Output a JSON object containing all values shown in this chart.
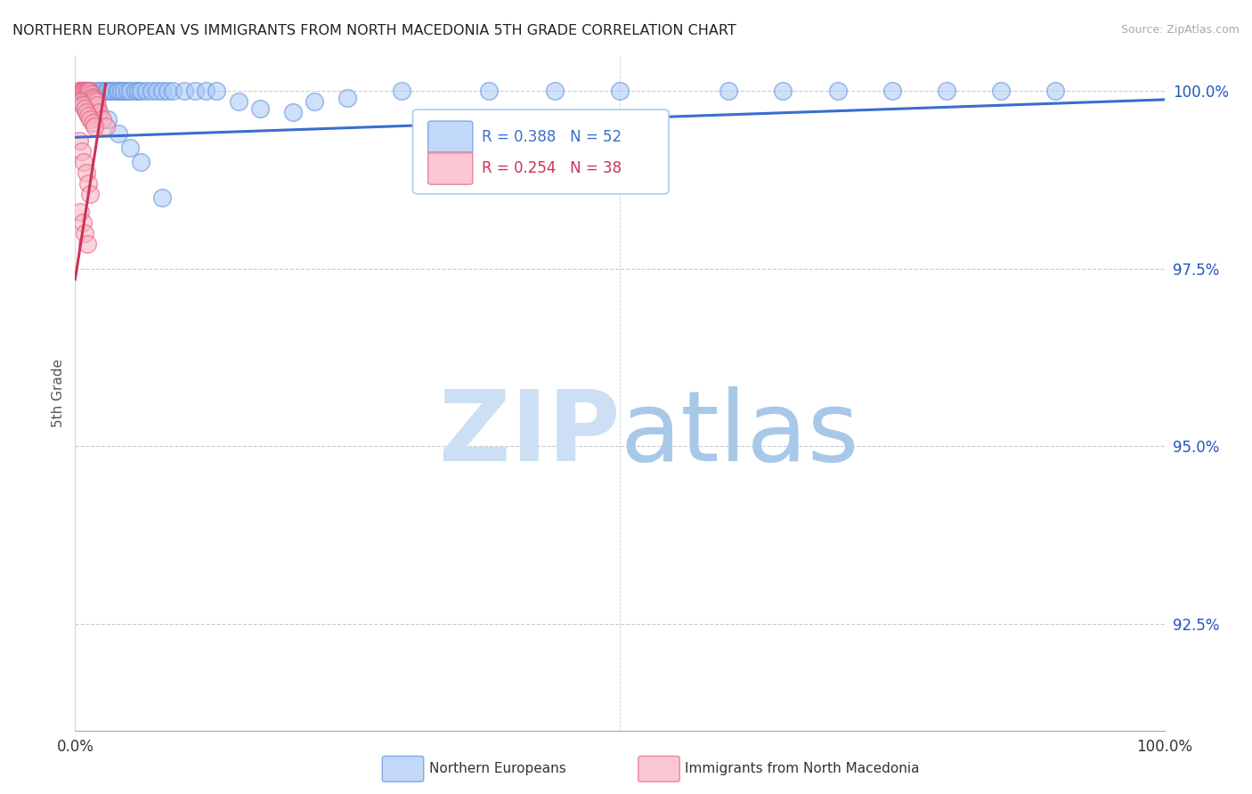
{
  "title": "NORTHERN EUROPEAN VS IMMIGRANTS FROM NORTH MACEDONIA 5TH GRADE CORRELATION CHART",
  "source": "Source: ZipAtlas.com",
  "ylabel": "5th Grade",
  "xlim": [
    0.0,
    1.0
  ],
  "ylim": [
    0.91,
    1.005
  ],
  "x_ticks": [
    0.0,
    0.2,
    0.4,
    0.6,
    0.8,
    1.0
  ],
  "x_tick_labels": [
    "0.0%",
    "",
    "",
    "",
    "",
    "100.0%"
  ],
  "y_ticks": [
    0.925,
    0.95,
    0.975,
    1.0
  ],
  "y_tick_labels": [
    "92.5%",
    "95.0%",
    "97.5%",
    "100.0%"
  ],
  "blue_color": "#a8c8f8",
  "pink_color": "#f8b0c0",
  "blue_edge_color": "#6090d8",
  "pink_edge_color": "#e06080",
  "blue_line_color": "#3a6ecc",
  "pink_line_color": "#cc3355",
  "watermark_zip": "ZIP",
  "watermark_atlas": "atlas",
  "legend_label_blue": "R = 0.388   N = 52",
  "legend_label_pink": "R = 0.254   N = 38",
  "blue_scatter_x": [
    0.005,
    0.01,
    0.012,
    0.015,
    0.02,
    0.022,
    0.025,
    0.028,
    0.03,
    0.032,
    0.035,
    0.038,
    0.04,
    0.042,
    0.045,
    0.048,
    0.05,
    0.055,
    0.058,
    0.06,
    0.065,
    0.07,
    0.075,
    0.08,
    0.085,
    0.09,
    0.1,
    0.11,
    0.12,
    0.13,
    0.15,
    0.17,
    0.2,
    0.22,
    0.25,
    0.3,
    0.38,
    0.44,
    0.5,
    0.6,
    0.65,
    0.7,
    0.75,
    0.8,
    0.85,
    0.9,
    0.02,
    0.03,
    0.04,
    0.05,
    0.06,
    0.08
  ],
  "blue_scatter_y": [
    0.9985,
    0.999,
    0.9995,
    1.0,
    1.0,
    1.0,
    1.0,
    1.0,
    1.0,
    1.0,
    1.0,
    1.0,
    1.0,
    1.0,
    1.0,
    1.0,
    1.0,
    1.0,
    1.0,
    1.0,
    1.0,
    1.0,
    1.0,
    1.0,
    1.0,
    1.0,
    1.0,
    1.0,
    1.0,
    1.0,
    0.9985,
    0.9975,
    0.997,
    0.9985,
    0.999,
    1.0,
    1.0,
    1.0,
    1.0,
    1.0,
    1.0,
    1.0,
    1.0,
    1.0,
    1.0,
    1.0,
    0.9975,
    0.996,
    0.994,
    0.992,
    0.99,
    0.985
  ],
  "pink_scatter_x": [
    0.003,
    0.005,
    0.006,
    0.007,
    0.008,
    0.009,
    0.01,
    0.011,
    0.012,
    0.013,
    0.014,
    0.015,
    0.016,
    0.017,
    0.018,
    0.019,
    0.02,
    0.022,
    0.025,
    0.028,
    0.005,
    0.007,
    0.009,
    0.01,
    0.012,
    0.014,
    0.016,
    0.018,
    0.004,
    0.006,
    0.008,
    0.01,
    0.012,
    0.014,
    0.005,
    0.007,
    0.009,
    0.011
  ],
  "pink_scatter_y": [
    1.0,
    1.0,
    1.0,
    1.0,
    1.0,
    1.0,
    1.0,
    1.0,
    1.0,
    1.0,
    0.9998,
    0.9995,
    0.9992,
    0.999,
    0.9988,
    0.9985,
    0.998,
    0.997,
    0.996,
    0.995,
    0.9985,
    0.998,
    0.9975,
    0.997,
    0.9965,
    0.996,
    0.9955,
    0.995,
    0.993,
    0.9915,
    0.99,
    0.9885,
    0.987,
    0.9855,
    0.983,
    0.9815,
    0.98,
    0.9785
  ],
  "blue_trend_x0": 0.0,
  "blue_trend_x1": 1.0,
  "blue_trend_y0": 0.9935,
  "blue_trend_y1": 0.9988,
  "pink_trend_x0": 0.0,
  "pink_trend_x1": 0.028,
  "pink_trend_y0": 0.9735,
  "pink_trend_y1": 1.001
}
